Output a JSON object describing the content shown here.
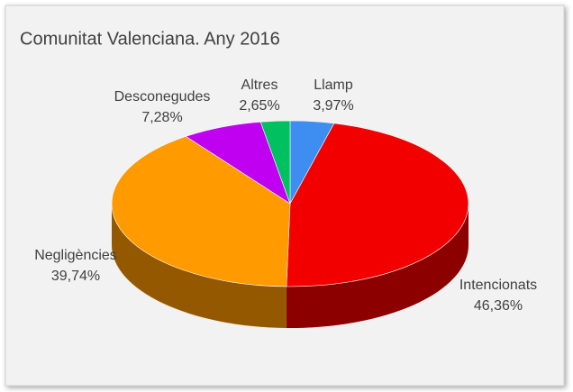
{
  "chart_data": {
    "type": "pie",
    "title": "Comunitat Valenciana. Any 2016",
    "categories": [
      "Llamp",
      "Intencionats",
      "Negligències",
      "Desconegudes",
      "Altres"
    ],
    "values": [
      3.97,
      46.36,
      39.74,
      7.28,
      2.65
    ],
    "value_labels": [
      "3,97%",
      "46,36%",
      "39,74%",
      "7,28%",
      "2,65%"
    ],
    "colors": [
      "#3d8ef0",
      "#f20000",
      "#ff9a00",
      "#c000f0",
      "#00c060"
    ]
  }
}
